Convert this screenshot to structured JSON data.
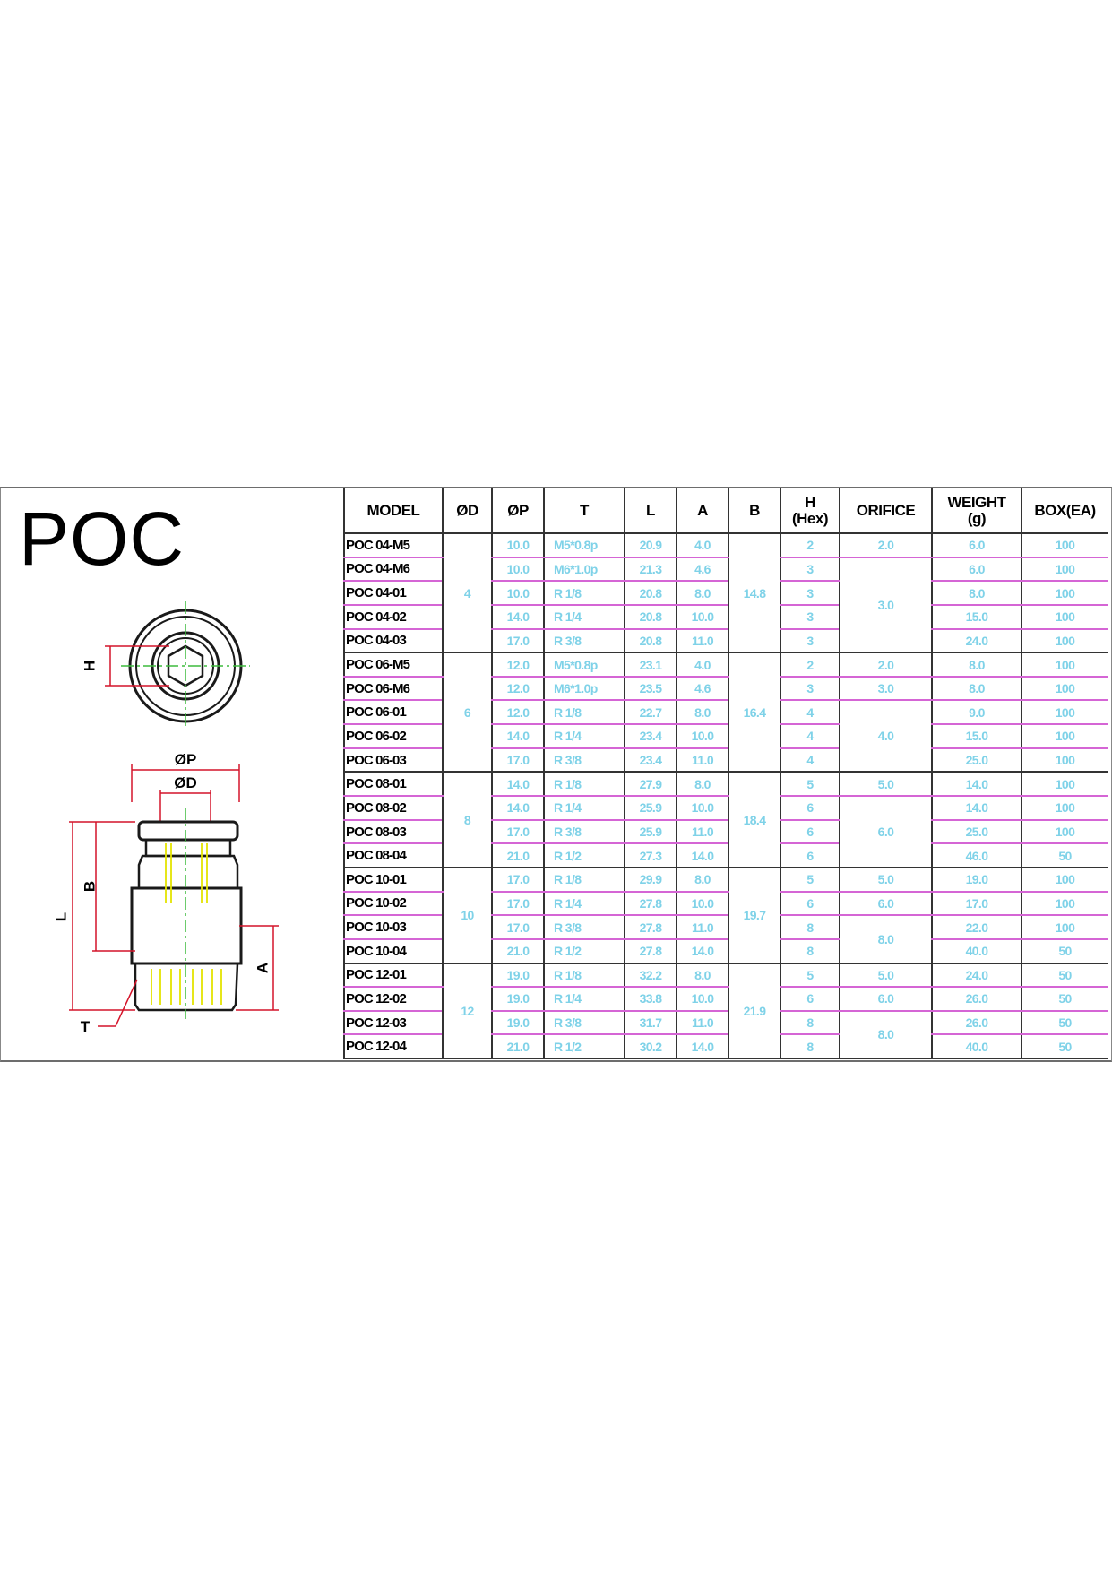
{
  "title": "POC",
  "drawing_labels": {
    "hex": "H",
    "p": "ØP",
    "d": "ØD",
    "l": "L",
    "b": "B",
    "a": "A",
    "t": "T"
  },
  "headers": {
    "model": "MODEL",
    "d": "ØD",
    "p": "ØP",
    "t": "T",
    "l": "L",
    "a": "A",
    "b": "B",
    "h_line1": "H",
    "h_line2": "(Hex)",
    "orifice": "ORIFICE",
    "weight_line1": "WEIGHT",
    "weight_line2": "(g)",
    "box": "BOX(EA)"
  },
  "colors": {
    "value_text": "#7fd2e8",
    "row_line": "#d565d5",
    "dimension_line": "#d4142a",
    "center_line": "#3dbb3d",
    "thread_line": "#e4e400"
  },
  "groups": [
    {
      "d": "4",
      "b": "14.8",
      "rows": [
        {
          "model": "POC 04-M5",
          "p": "10.0",
          "t": "M5*0.8p",
          "l": "20.9",
          "a": "4.0",
          "h": "2",
          "orifice": "2.0",
          "weight": "6.0",
          "box": "100"
        },
        {
          "model": "POC 04-M6",
          "p": "10.0",
          "t": "M6*1.0p",
          "l": "21.3",
          "a": "4.6",
          "h": "3",
          "orifice": "3.0",
          "weight": "6.0",
          "box": "100"
        },
        {
          "model": "POC 04-01",
          "p": "10.0",
          "t": "R 1/8",
          "l": "20.8",
          "a": "8.0",
          "h": "3",
          "orifice": "",
          "weight": "8.0",
          "box": "100"
        },
        {
          "model": "POC 04-02",
          "p": "14.0",
          "t": "R 1/4",
          "l": "20.8",
          "a": "10.0",
          "h": "3",
          "orifice": "",
          "weight": "15.0",
          "box": "100"
        },
        {
          "model": "POC 04-03",
          "p": "17.0",
          "t": "R 3/8",
          "l": "20.8",
          "a": "11.0",
          "h": "3",
          "orifice": "",
          "weight": "24.0",
          "box": "100"
        }
      ]
    },
    {
      "d": "6",
      "b": "16.4",
      "rows": [
        {
          "model": "POC 06-M5",
          "p": "12.0",
          "t": "M5*0.8p",
          "l": "23.1",
          "a": "4.0",
          "h": "2",
          "orifice": "2.0",
          "weight": "8.0",
          "box": "100"
        },
        {
          "model": "POC 06-M6",
          "p": "12.0",
          "t": "M6*1.0p",
          "l": "23.5",
          "a": "4.6",
          "h": "3",
          "orifice": "3.0",
          "weight": "8.0",
          "box": "100"
        },
        {
          "model": "POC 06-01",
          "p": "12.0",
          "t": "R 1/8",
          "l": "22.7",
          "a": "8.0",
          "h": "4",
          "orifice": "4.0",
          "weight": "9.0",
          "box": "100"
        },
        {
          "model": "POC 06-02",
          "p": "14.0",
          "t": "R 1/4",
          "l": "23.4",
          "a": "10.0",
          "h": "4",
          "orifice": "",
          "weight": "15.0",
          "box": "100"
        },
        {
          "model": "POC 06-03",
          "p": "17.0",
          "t": "R 3/8",
          "l": "23.4",
          "a": "11.0",
          "h": "4",
          "orifice": "",
          "weight": "25.0",
          "box": "100"
        }
      ]
    },
    {
      "d": "8",
      "b": "18.4",
      "rows": [
        {
          "model": "POC 08-01",
          "p": "14.0",
          "t": "R 1/8",
          "l": "27.9",
          "a": "8.0",
          "h": "5",
          "orifice": "5.0",
          "weight": "14.0",
          "box": "100"
        },
        {
          "model": "POC 08-02",
          "p": "14.0",
          "t": "R 1/4",
          "l": "25.9",
          "a": "10.0",
          "h": "6",
          "orifice": "6.0",
          "weight": "14.0",
          "box": "100"
        },
        {
          "model": "POC 08-03",
          "p": "17.0",
          "t": "R 3/8",
          "l": "25.9",
          "a": "11.0",
          "h": "6",
          "orifice": "",
          "weight": "25.0",
          "box": "100"
        },
        {
          "model": "POC 08-04",
          "p": "21.0",
          "t": "R 1/2",
          "l": "27.3",
          "a": "14.0",
          "h": "6",
          "orifice": "",
          "weight": "46.0",
          "box": "50"
        }
      ]
    },
    {
      "d": "10",
      "b": "19.7",
      "rows": [
        {
          "model": "POC 10-01",
          "p": "17.0",
          "t": "R 1/8",
          "l": "29.9",
          "a": "8.0",
          "h": "5",
          "orifice": "5.0",
          "weight": "19.0",
          "box": "100"
        },
        {
          "model": "POC 10-02",
          "p": "17.0",
          "t": "R 1/4",
          "l": "27.8",
          "a": "10.0",
          "h": "6",
          "orifice": "6.0",
          "weight": "17.0",
          "box": "100"
        },
        {
          "model": "POC 10-03",
          "p": "17.0",
          "t": "R 3/8",
          "l": "27.8",
          "a": "11.0",
          "h": "8",
          "orifice": "8.0",
          "weight": "22.0",
          "box": "100"
        },
        {
          "model": "POC 10-04",
          "p": "21.0",
          "t": "R 1/2",
          "l": "27.8",
          "a": "14.0",
          "h": "8",
          "orifice": "",
          "weight": "40.0",
          "box": "50"
        }
      ]
    },
    {
      "d": "12",
      "b": "21.9",
      "rows": [
        {
          "model": "POC 12-01",
          "p": "19.0",
          "t": "R 1/8",
          "l": "32.2",
          "a": "8.0",
          "h": "5",
          "orifice": "5.0",
          "weight": "24.0",
          "box": "50"
        },
        {
          "model": "POC 12-02",
          "p": "19.0",
          "t": "R 1/4",
          "l": "33.8",
          "a": "10.0",
          "h": "6",
          "orifice": "6.0",
          "weight": "26.0",
          "box": "50"
        },
        {
          "model": "POC 12-03",
          "p": "19.0",
          "t": "R 3/8",
          "l": "31.7",
          "a": "11.0",
          "h": "8",
          "orifice": "8.0",
          "weight": "26.0",
          "box": "50"
        },
        {
          "model": "POC 12-04",
          "p": "21.0",
          "t": "R 1/2",
          "l": "30.2",
          "a": "14.0",
          "h": "8",
          "orifice": "",
          "weight": "40.0",
          "box": "50"
        }
      ]
    }
  ]
}
